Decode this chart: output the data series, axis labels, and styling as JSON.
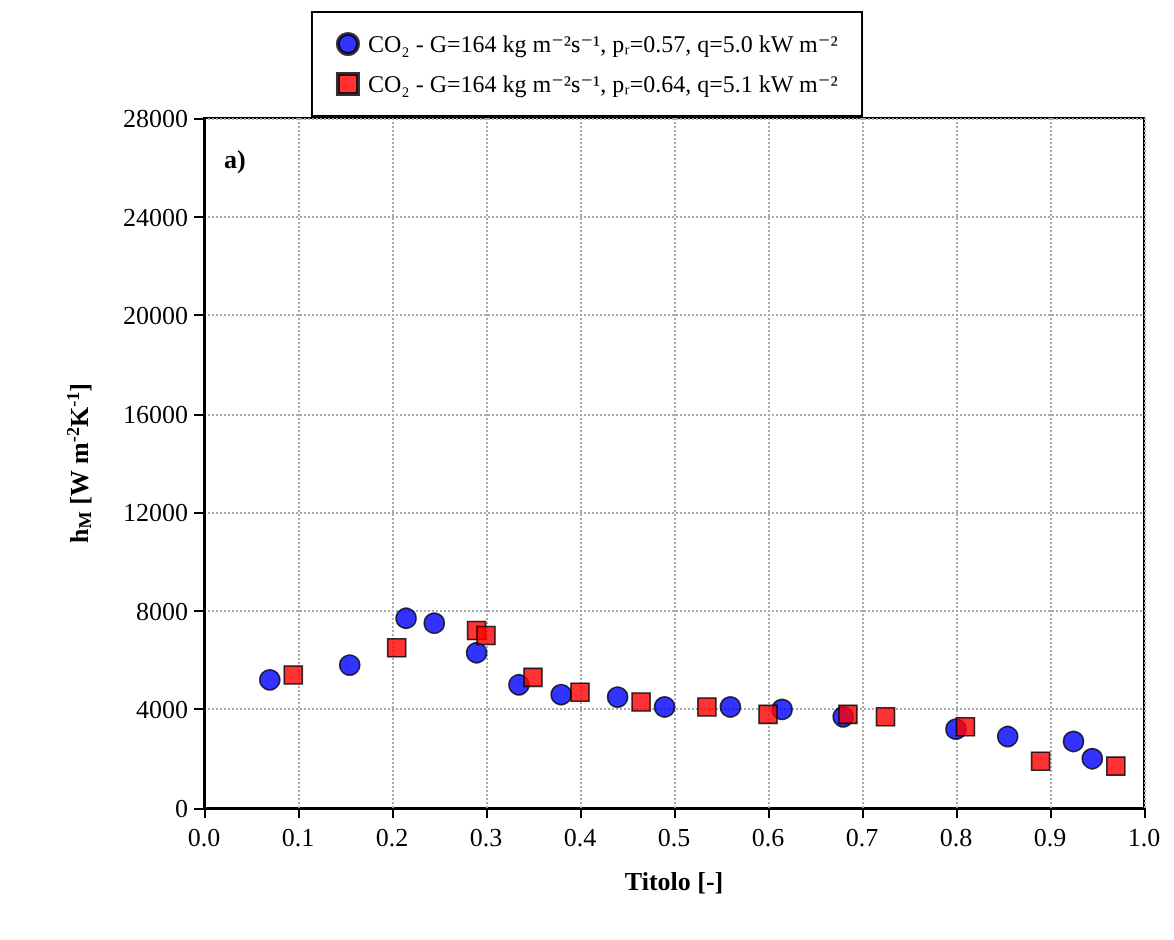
{
  "chart_data": {
    "type": "scatter",
    "xlabel": "Titolo [-]",
    "ylabel": "h$_{M}$ [W m$^{-2}$K$^{-1}$]",
    "xlim": [
      0,
      1
    ],
    "xticks": [
      {
        "value": 0,
        "label": "0.0"
      },
      {
        "value": 0.1,
        "label": "0.1"
      },
      {
        "value": 0.2,
        "label": "0.2"
      },
      {
        "value": 0.3,
        "label": "0.3"
      },
      {
        "value": 0.4,
        "label": "0.4"
      },
      {
        "value": 0.5,
        "label": "0.5"
      },
      {
        "value": 0.6,
        "label": "0.6"
      },
      {
        "value": 0.7,
        "label": "0.7"
      },
      {
        "value": 0.8,
        "label": "0.8"
      },
      {
        "value": 0.9,
        "label": "0.9"
      },
      {
        "value": 1,
        "label": "1.0"
      }
    ],
    "ylim": [
      0,
      28000
    ],
    "yticks": [
      0,
      4000,
      8000,
      12000,
      16000,
      20000,
      24000,
      28000
    ],
    "grid": true,
    "legend": "top",
    "annotations": [
      "a)"
    ],
    "series": [
      {
        "name": "CO₂ - G=164 kg m⁻²s⁻¹, pᵣ=0.57, q=5.0 kW m⁻²",
        "color": "#0000ff",
        "marker": "circle",
        "x": [
          0.07,
          0.155,
          0.215,
          0.245,
          0.29,
          0.335,
          0.38,
          0.44,
          0.49,
          0.56,
          0.615,
          0.68,
          0.8,
          0.855,
          0.925,
          0.945
        ],
        "values": [
          5200,
          5800,
          7700,
          7500,
          6300,
          5000,
          4600,
          4500,
          4100,
          4100,
          4000,
          3700,
          3200,
          2900,
          2700,
          2000
        ]
      },
      {
        "name": "CO₂ - G=164 kg m⁻²s⁻¹, pᵣ=0.64, q=5.1 kW m⁻²",
        "color": "#ff0000",
        "marker": "square",
        "x": [
          0.095,
          0.205,
          0.29,
          0.3,
          0.35,
          0.4,
          0.465,
          0.535,
          0.6,
          0.685,
          0.725,
          0.81,
          0.89,
          0.97
        ],
        "values": [
          5400,
          6500,
          7200,
          7000,
          5300,
          4700,
          4300,
          4100,
          3800,
          3800,
          3700,
          3300,
          1900,
          1700
        ]
      }
    ]
  }
}
